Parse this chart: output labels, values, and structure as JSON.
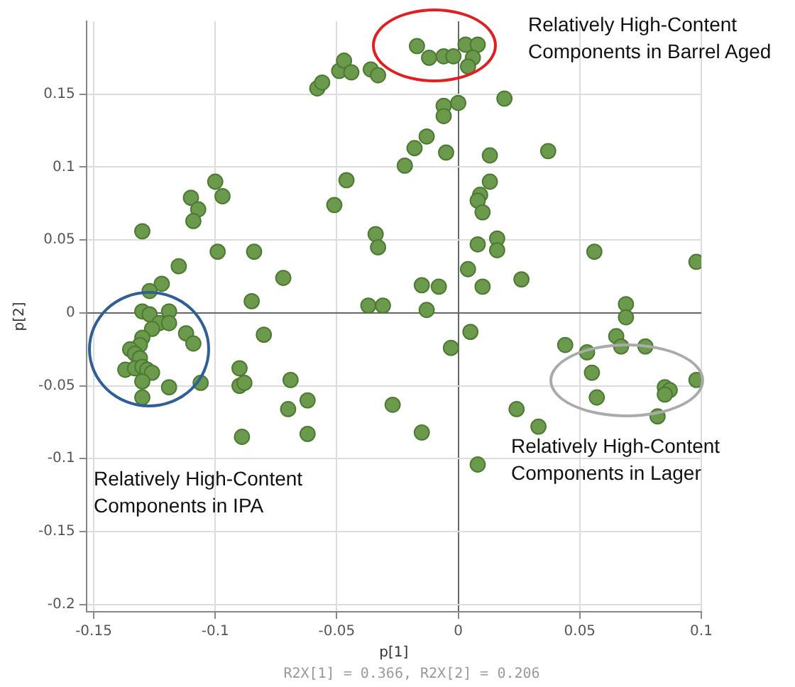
{
  "chart_data": {
    "type": "scatter",
    "xlabel": "p[1]",
    "ylabel": "p[2]",
    "annotations": [
      "Relatively High-Content Components in Barrel Aged",
      "Relatively High-Content Components in Lager",
      "Relatively High-Content Components in IPA",
      "R2X[1] = 0.366, R2X[2] = 0.206"
    ],
    "xlim": [
      -0.153,
      0.1
    ],
    "ylim": [
      -0.205,
      0.2
    ],
    "xticks": [
      -0.15,
      -0.1,
      -0.05,
      0,
      0.05,
      0.1
    ],
    "yticks": [
      -0.2,
      -0.15,
      -0.1,
      -0.05,
      0,
      0.05,
      0.1,
      0.15
    ],
    "grid": true,
    "marker": "circle",
    "series": [
      {
        "color": "#6b9a4c",
        "x": [
          -0.13,
          -0.11,
          -0.107,
          -0.109,
          -0.1,
          -0.097,
          -0.099,
          -0.084,
          -0.115,
          -0.072,
          -0.122,
          -0.127,
          -0.085,
          -0.037,
          -0.031,
          -0.051,
          -0.046,
          -0.034,
          -0.033,
          -0.058,
          -0.056,
          -0.049,
          -0.047,
          -0.044,
          -0.036,
          -0.033,
          -0.017,
          -0.012,
          -0.006,
          -0.002,
          0.003,
          0.008,
          0.006,
          0.004,
          0.019,
          -0.006,
          0.0,
          -0.006,
          -0.013,
          -0.018,
          -0.022,
          -0.005,
          0.013,
          0.037,
          0.013,
          0.009,
          0.008,
          0.01,
          0.016,
          0.016,
          0.008,
          0.056,
          0.098,
          0.004,
          0.026,
          -0.015,
          -0.008,
          0.01,
          -0.013,
          0.069,
          0.069,
          0.005,
          0.065,
          -0.003,
          0.044,
          0.053,
          0.067,
          0.077,
          0.055,
          0.057,
          0.085,
          0.087,
          0.085,
          0.098,
          0.082,
          0.024,
          0.033,
          -0.027,
          -0.015,
          0.008,
          -0.13,
          -0.127,
          -0.119,
          -0.123,
          -0.119,
          -0.126,
          -0.112,
          -0.109,
          -0.13,
          -0.131,
          -0.135,
          -0.133,
          -0.131,
          -0.137,
          -0.133,
          -0.13,
          -0.128,
          -0.126,
          -0.13,
          -0.13,
          -0.119,
          -0.106,
          -0.09,
          -0.09,
          -0.088,
          -0.089,
          -0.08,
          -0.069,
          -0.07,
          -0.062,
          -0.062
        ],
        "values": [
          0.056,
          0.079,
          0.071,
          0.063,
          0.09,
          0.08,
          0.042,
          0.042,
          0.032,
          0.024,
          0.02,
          0.015,
          0.008,
          0.005,
          0.005,
          0.074,
          0.091,
          0.054,
          0.045,
          0.154,
          0.158,
          0.166,
          0.173,
          0.165,
          0.167,
          0.163,
          0.183,
          0.175,
          0.176,
          0.176,
          0.184,
          0.184,
          0.175,
          0.169,
          0.147,
          0.142,
          0.144,
          0.135,
          0.121,
          0.113,
          0.101,
          0.11,
          0.108,
          0.111,
          0.09,
          0.081,
          0.077,
          0.069,
          0.051,
          0.043,
          0.047,
          0.042,
          0.035,
          0.03,
          0.023,
          0.019,
          0.018,
          0.018,
          0.002,
          0.006,
          -0.003,
          -0.013,
          -0.016,
          -0.024,
          -0.022,
          -0.027,
          -0.023,
          -0.023,
          -0.041,
          -0.058,
          -0.051,
          -0.053,
          -0.056,
          -0.046,
          -0.071,
          -0.066,
          -0.078,
          -0.063,
          -0.082,
          -0.104,
          0.001,
          -0.001,
          0.001,
          -0.007,
          -0.007,
          -0.011,
          -0.014,
          -0.021,
          -0.017,
          -0.022,
          -0.025,
          -0.028,
          -0.031,
          -0.039,
          -0.038,
          -0.037,
          -0.039,
          -0.041,
          -0.047,
          -0.058,
          -0.051,
          -0.048,
          -0.038,
          -0.05,
          -0.048,
          -0.085,
          -0.015,
          -0.046,
          -0.066,
          -0.06,
          -0.083
        ]
      }
    ]
  }
}
